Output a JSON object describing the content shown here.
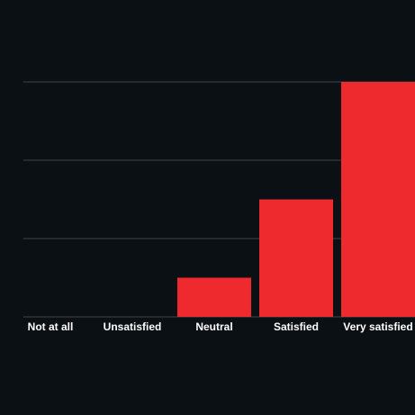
{
  "chart_data": {
    "type": "bar",
    "categories": [
      "Not at all",
      "Unsatisfied",
      "Neutral",
      "Satisfied",
      "Very satisfied"
    ],
    "values": [
      0,
      0,
      0.5,
      1.5,
      3
    ],
    "color": "#ee2a2e",
    "ylim": [
      0,
      3
    ],
    "yticks": [
      0,
      1,
      2,
      3
    ],
    "grid": true
  }
}
